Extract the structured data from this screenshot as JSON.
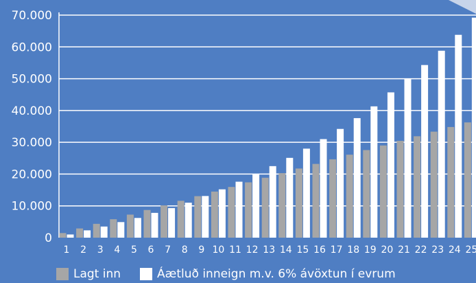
{
  "chart_data": {
    "type": "bar",
    "categories": [
      "1",
      "2",
      "3",
      "4",
      "5",
      "6",
      "7",
      "8",
      "9",
      "10",
      "11",
      "12",
      "13",
      "14",
      "15",
      "16",
      "17",
      "18",
      "19",
      "20",
      "21",
      "22",
      "23",
      "24",
      "25"
    ],
    "series": [
      {
        "name": "Lagt inn",
        "color": "#a6a6a6",
        "values": [
          1450,
          2900,
          4350,
          5800,
          7250,
          8700,
          10150,
          11600,
          13050,
          14500,
          15950,
          17400,
          18850,
          20300,
          21750,
          23200,
          24650,
          26100,
          27550,
          29000,
          30450,
          31900,
          33350,
          34800,
          36250
        ]
      },
      {
        "name": "Áætluð inneign m.v. 6% ávöxtun í evrum",
        "color": "#ffffff",
        "values": [
          1000,
          2300,
          3500,
          4900,
          6200,
          7800,
          9300,
          11000,
          13100,
          15200,
          17600,
          20000,
          22500,
          25100,
          28000,
          31000,
          34200,
          37600,
          41300,
          45700,
          49900,
          54300,
          58800,
          63800,
          69200
        ]
      }
    ],
    "ylim": [
      0,
      70000
    ],
    "yticks": [
      "0",
      "10.000",
      "20.000",
      "30.000",
      "40.000",
      "50.000",
      "60.000",
      "70.000"
    ],
    "grid": true,
    "legend_position": "bottom-left"
  }
}
